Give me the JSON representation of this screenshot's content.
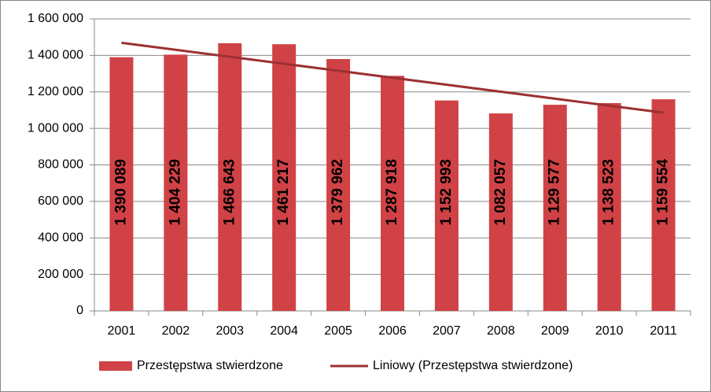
{
  "chart_data": {
    "type": "bar",
    "categories": [
      "2001",
      "2002",
      "2003",
      "2004",
      "2005",
      "2006",
      "2007",
      "2008",
      "2009",
      "2010",
      "2011"
    ],
    "series": [
      {
        "name": "Przestępstwa stwierdzone",
        "color": "#d04245",
        "type": "bar",
        "values": [
          1390089,
          1404229,
          1466643,
          1461217,
          1379962,
          1287918,
          1152993,
          1082057,
          1129577,
          1138523,
          1159554
        ],
        "value_labels": [
          "1 390 089",
          "1 404 229",
          "1 466 643",
          "1 461 217",
          "1 379 962",
          "1 287 918",
          "1 152 993",
          "1 082 057",
          "1 129 577",
          "1 138 523",
          "1 159 554"
        ]
      },
      {
        "name": "Liniowy (Przestępstwa stwierdzone)",
        "color": "#9c3032",
        "type": "line",
        "values": [
          1468979,
          1430688,
          1392397,
          1354106,
          1315815,
          1277524,
          1239233,
          1200942,
          1162651,
          1124360,
          1086069
        ]
      }
    ],
    "ylim": [
      0,
      1600000
    ],
    "yticks": [
      0,
      {
        "value": 200000,
        "label": "200 000"
      },
      {
        "value": 400000,
        "label": "400 000"
      },
      {
        "value": 600000,
        "label": "600 000"
      },
      {
        "value": 800000,
        "label": "800 000"
      },
      {
        "value": 1000000,
        "label": "1 000 000"
      },
      {
        "value": 1200000,
        "label": "1 200 000"
      },
      {
        "value": 1400000,
        "label": "1 400 000"
      },
      {
        "value": 1600000,
        "label": "1 600 000"
      }
    ],
    "grid": true,
    "legend": "bottom"
  }
}
